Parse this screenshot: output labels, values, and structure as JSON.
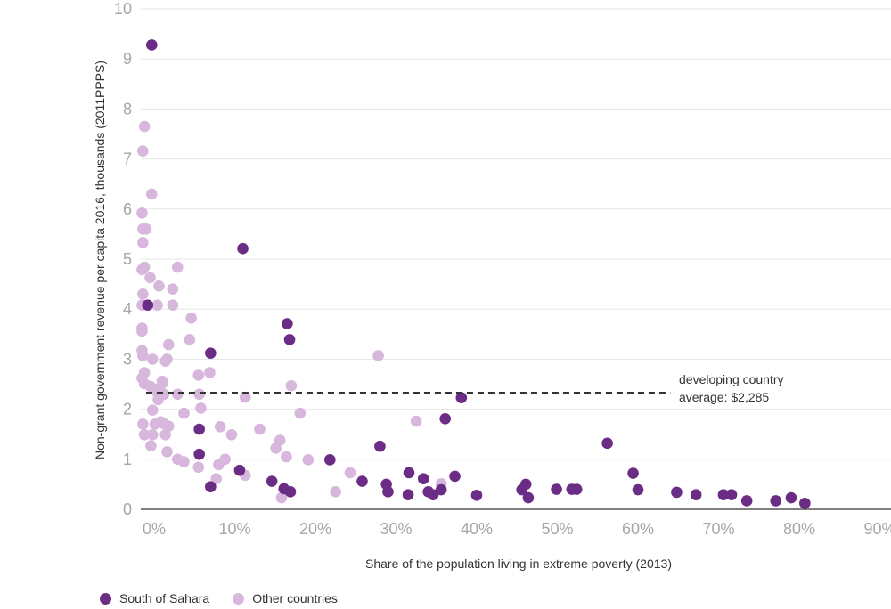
{
  "chart_data": {
    "type": "scatter",
    "xlabel": "Share of the population living in extreme poverty (2013)",
    "ylabel": "Non-grant government revenue per capita 2016, thousands (2011PPPS)",
    "x_ticks": [
      "0%",
      "10%",
      "20%",
      "30%",
      "40%",
      "50%",
      "60%",
      "70%",
      "80%",
      "90%"
    ],
    "y_ticks": [
      "0",
      "1",
      "2",
      "3",
      "4",
      "5",
      "6",
      "7",
      "8",
      "9",
      "10"
    ],
    "xlim": [
      -1.5,
      92
    ],
    "ylim": [
      0,
      10
    ],
    "grid": "horizontal",
    "legend_position": "bottom-left",
    "reference_line": {
      "y": 2.33,
      "x_start": -1,
      "x_end": 64,
      "label_line1": "developing country",
      "label_line2": "average: $2,285"
    },
    "series": [
      {
        "name": "South of Sahara",
        "color": "#6b2c86",
        "points": [
          [
            -0.3,
            9.28
          ],
          [
            -0.8,
            4.08
          ],
          [
            11,
            5.21
          ],
          [
            7,
            3.12
          ],
          [
            5.6,
            1.6
          ],
          [
            5.6,
            1.1
          ],
          [
            7,
            0.45
          ],
          [
            10.6,
            0.78
          ],
          [
            16.5,
            3.71
          ],
          [
            16.8,
            3.39
          ],
          [
            14.6,
            0.56
          ],
          [
            16.1,
            0.41
          ],
          [
            16.9,
            0.35
          ],
          [
            21.8,
            0.99
          ],
          [
            25.8,
            0.56
          ],
          [
            28,
            1.26
          ],
          [
            28.8,
            0.5
          ],
          [
            29,
            0.35
          ],
          [
            31.6,
            0.73
          ],
          [
            31.5,
            0.29
          ],
          [
            33.4,
            0.61
          ],
          [
            34,
            0.35
          ],
          [
            34.6,
            0.29
          ],
          [
            35.6,
            0.39
          ],
          [
            36.1,
            1.81
          ],
          [
            37.3,
            0.66
          ],
          [
            38.1,
            2.23
          ],
          [
            40,
            0.28
          ],
          [
            45.6,
            0.39
          ],
          [
            46.1,
            0.5
          ],
          [
            46.4,
            0.23
          ],
          [
            49.9,
            0.4
          ],
          [
            51.8,
            0.4
          ],
          [
            52.4,
            0.4
          ],
          [
            56.2,
            1.32
          ],
          [
            59.4,
            0.72
          ],
          [
            60,
            0.39
          ],
          [
            64.8,
            0.34
          ],
          [
            67.2,
            0.29
          ],
          [
            70.6,
            0.29
          ],
          [
            71.6,
            0.29
          ],
          [
            73.5,
            0.17
          ],
          [
            77.1,
            0.17
          ],
          [
            79,
            0.23
          ],
          [
            80.7,
            0.12
          ]
        ]
      },
      {
        "name": "Other countries",
        "color": "#d7b7dc",
        "points": [
          [
            -1.2,
            7.65
          ],
          [
            -1.4,
            7.16
          ],
          [
            -0.3,
            6.3
          ],
          [
            -1.5,
            5.92
          ],
          [
            -1.4,
            5.6
          ],
          [
            -1,
            5.6
          ],
          [
            -1.4,
            5.33
          ],
          [
            -1.2,
            4.84
          ],
          [
            -1.5,
            4.79
          ],
          [
            -0.5,
            4.63
          ],
          [
            -1.4,
            4.3
          ],
          [
            -1.5,
            4.08
          ],
          [
            -1.5,
            3.62
          ],
          [
            -1.5,
            3.56
          ],
          [
            -1.5,
            3.17
          ],
          [
            -1.4,
            3.07
          ],
          [
            -1.2,
            2.73
          ],
          [
            -1.5,
            2.62
          ],
          [
            -1.2,
            2.51
          ],
          [
            -0.5,
            2.46
          ],
          [
            -0.2,
            3.0
          ],
          [
            0.2,
            2.4
          ],
          [
            0.5,
            2.29
          ],
          [
            0.5,
            2.19
          ],
          [
            1,
            2.51
          ],
          [
            1,
            2.56
          ],
          [
            1.2,
            2.3
          ],
          [
            1.4,
            2.96
          ],
          [
            1.6,
            3.0
          ],
          [
            1.8,
            3.29
          ],
          [
            -0.2,
            1.98
          ],
          [
            -1.4,
            1.7
          ],
          [
            0.1,
            1.7
          ],
          [
            0.8,
            1.75
          ],
          [
            1.2,
            1.71
          ],
          [
            1.8,
            1.66
          ],
          [
            1.4,
            1.49
          ],
          [
            -1.2,
            1.49
          ],
          [
            -0.2,
            1.49
          ],
          [
            -0.4,
            1.27
          ],
          [
            1.6,
            1.15
          ],
          [
            0.4,
            4.08
          ],
          [
            0.6,
            4.46
          ],
          [
            2.3,
            4.4
          ],
          [
            2.3,
            4.08
          ],
          [
            2.9,
            4.84
          ],
          [
            4.6,
            3.82
          ],
          [
            4.4,
            3.39
          ],
          [
            5.5,
            2.68
          ],
          [
            6.9,
            2.73
          ],
          [
            2.9,
            2.3
          ],
          [
            5.6,
            2.3
          ],
          [
            5.8,
            2.02
          ],
          [
            3.7,
            1.92
          ],
          [
            2.9,
            1.0
          ],
          [
            3.7,
            0.95
          ],
          [
            5.5,
            0.84
          ],
          [
            8.2,
            1.65
          ],
          [
            8.8,
            1.0
          ],
          [
            8,
            0.89
          ],
          [
            7.7,
            0.61
          ],
          [
            9.6,
            1.49
          ],
          [
            11.3,
            2.24
          ],
          [
            11.3,
            0.68
          ],
          [
            13.1,
            1.6
          ],
          [
            15.1,
            1.22
          ],
          [
            15.6,
            1.38
          ],
          [
            16.4,
            1.05
          ],
          [
            15.8,
            0.23
          ],
          [
            17,
            2.47
          ],
          [
            18.1,
            1.92
          ],
          [
            19.1,
            0.99
          ],
          [
            22.5,
            0.35
          ],
          [
            24.3,
            0.73
          ],
          [
            27.8,
            3.07
          ],
          [
            32.5,
            1.76
          ],
          [
            35.6,
            0.51
          ]
        ]
      }
    ]
  },
  "legend": {
    "items": [
      {
        "label": "South of Sahara",
        "color": "#6b2c86"
      },
      {
        "label": "Other countries",
        "color": "#d7b7dc"
      }
    ]
  }
}
